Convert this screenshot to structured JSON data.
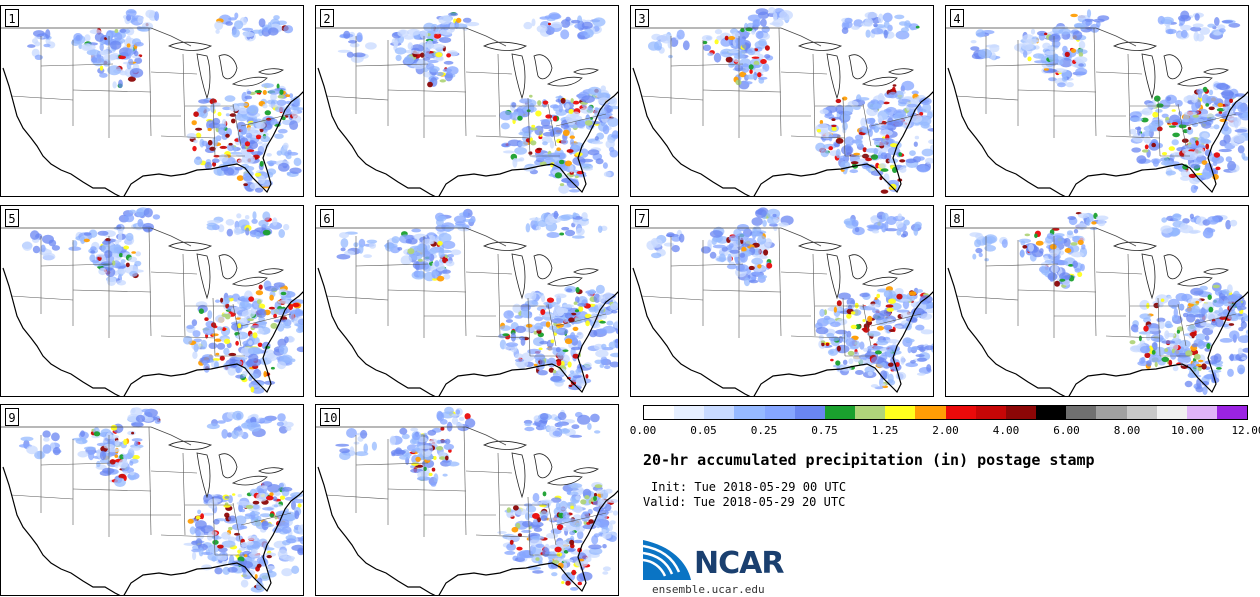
{
  "panels": [
    {
      "label": "1"
    },
    {
      "label": "2"
    },
    {
      "label": "3"
    },
    {
      "label": "4"
    },
    {
      "label": "5"
    },
    {
      "label": "6"
    },
    {
      "label": "7"
    },
    {
      "label": "8"
    },
    {
      "label": "9"
    },
    {
      "label": "10"
    }
  ],
  "legend": {
    "colors": [
      "#ffffff",
      "#e6efff",
      "#c8daff",
      "#96b9ff",
      "#86a6ff",
      "#6a86f2",
      "#1aa02e",
      "#b0d47a",
      "#ffff1e",
      "#ff9e05",
      "#ea0a0a",
      "#c60606",
      "#8c0606",
      "#000000",
      "#707070",
      "#a0a0a0",
      "#c8c8c8",
      "#f0f0f0",
      "#e0b4f8",
      "#9b23e2"
    ],
    "ticks": [
      "0.00",
      "0.05",
      "0.25",
      "0.75",
      "1.25",
      "2.00",
      "4.00",
      "6.00",
      "8.00",
      "10.00",
      "12.00"
    ]
  },
  "title": "20-hr accumulated precipitation (in) postage stamp",
  "init": "Init: Tue 2018-05-29 00 UTC",
  "valid": "Valid: Tue 2018-05-29 20 UTC",
  "logo": {
    "text": "NCAR",
    "url_text": "ensemble.ucar.edu",
    "brand_color": "#1a3f6f",
    "accent_color": "#0a74c4"
  }
}
